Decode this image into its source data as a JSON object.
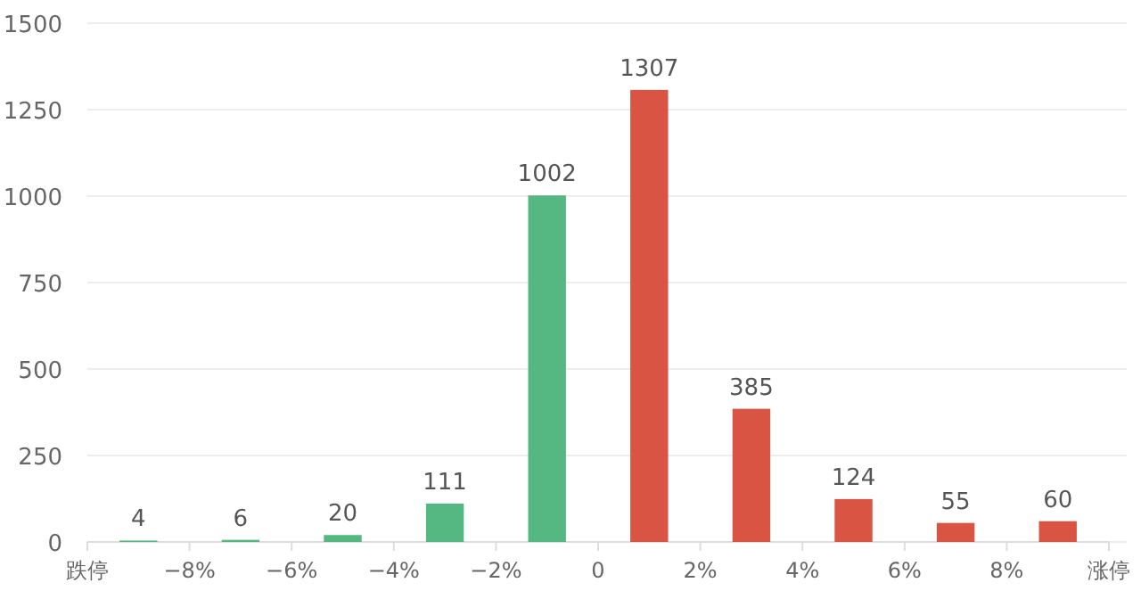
{
  "chart_data": {
    "type": "bar",
    "x": [
      -9,
      -7,
      -5,
      -3,
      -1,
      1,
      3,
      5,
      7,
      9
    ],
    "values": [
      4,
      6,
      20,
      111,
      1002,
      1307,
      385,
      124,
      55,
      60
    ],
    "colors": [
      "#55b782",
      "#55b782",
      "#55b782",
      "#55b782",
      "#55b782",
      "#d95443",
      "#d95443",
      "#d95443",
      "#d95443",
      "#d95443"
    ],
    "xlim": [
      -10,
      10
    ],
    "xticks": [
      {
        "value": -10,
        "label": "跌停"
      },
      {
        "value": -8,
        "label": "−8%"
      },
      {
        "value": -6,
        "label": "−6%"
      },
      {
        "value": -4,
        "label": "−4%"
      },
      {
        "value": -2,
        "label": "−2%"
      },
      0,
      {
        "value": 2,
        "label": "2%"
      },
      {
        "value": 4,
        "label": "4%"
      },
      {
        "value": 6,
        "label": "6%"
      },
      {
        "value": 8,
        "label": "8%"
      },
      {
        "value": 10,
        "label": "涨停"
      }
    ],
    "ylim": [
      0,
      1500
    ],
    "yticks": [
      0,
      250,
      500,
      750,
      1000,
      1250,
      1500
    ],
    "grid": "y",
    "data_labels": true
  }
}
